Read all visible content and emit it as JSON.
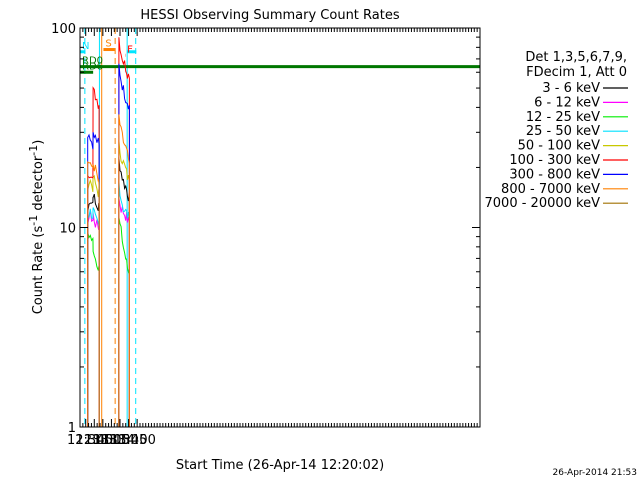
{
  "chart_data": {
    "type": "line",
    "title": "HESSI Observing Summary Count Rates",
    "xlabel": "Start Time (26-Apr-14 12:20:02)",
    "ylabel_main": "Count Rate (s",
    "ylabel_sup1": "-1",
    "ylabel_mid": " detector",
    "ylabel_sup2": "-1",
    "ylabel_end": ")",
    "yscale": "log",
    "ylim": [
      1,
      100
    ],
    "xlim": [
      740,
      1440
    ],
    "xtick_labels": [
      "12:30",
      "12:45",
      "13:00",
      "13:15",
      "13:30",
      "13:45",
      "14:00"
    ],
    "xtick_values": [
      750,
      765,
      780,
      795,
      810,
      825,
      840
    ],
    "ytick_labels": [
      "1",
      "10",
      "100"
    ],
    "ytick_values": [
      1,
      10,
      100
    ],
    "legend_header_1": "Det 1,3,5,6,7,9,",
    "legend_header_2": "FDecim 1, Att 0",
    "series": [
      {
        "name": "3 - 6 keV",
        "color": "#000000",
        "segments": [
          {
            "x": [
              753.5,
              758,
              762.5,
              763,
              767,
              772,
              773.5
            ],
            "y": [
              12,
              14,
              13.5,
              15,
              13,
              12.5,
              13
            ]
          },
          {
            "x": [
              808,
              812,
              816,
              820,
              823,
              826.5,
              826.5
            ],
            "y": [
              22,
              19,
              17,
              16,
              15,
              14,
              14
            ]
          }
        ]
      },
      {
        "name": "6 - 12 keV",
        "color": "#ff00ff",
        "segments": [
          {
            "x": [
              753.5,
              758,
              762.5,
              763,
              767,
              772,
              773.5
            ],
            "y": [
              11,
              11.5,
              11,
              11.5,
              10.5,
              10,
              10.2
            ]
          },
          {
            "x": [
              808,
              812,
              816,
              820,
              823,
              826.5
            ],
            "y": [
              14,
              12.5,
              12,
              11.5,
              11,
              10.5
            ]
          }
        ]
      },
      {
        "name": "12 - 25 keV",
        "color": "#00ee00",
        "segments": [
          {
            "x": [
              753.5,
              758,
              762.5,
              763,
              767,
              772,
              773.5
            ],
            "y": [
              9.5,
              9,
              8.5,
              8,
              7,
              6.5,
              6.3
            ]
          },
          {
            "x": [
              808,
              812,
              816,
              820,
              823,
              826.5
            ],
            "y": [
              11,
              9.5,
              8,
              7,
              6.3,
              5.8
            ]
          }
        ]
      },
      {
        "name": "25 - 50 keV",
        "color": "#00e0ff",
        "segments": [
          {
            "x": [
              753.5,
              758,
              762.5,
              763,
              767,
              772,
              773.5
            ],
            "y": [
              11.5,
              12,
              11.5,
              12,
              11,
              10.2,
              10
            ]
          },
          {
            "x": [
              808,
              812,
              816,
              820,
              823,
              826.5
            ],
            "y": [
              17,
              14,
              12.5,
              12,
              11.5,
              11
            ]
          }
        ]
      },
      {
        "name": "50 - 100 keV",
        "color": "#c8c800",
        "segments": [
          {
            "x": [
              753.5,
              758,
              762.5,
              763,
              767,
              772,
              773.5
            ],
            "y": [
              16.5,
              17,
              16,
              18,
              16.5,
              15,
              14.8
            ]
          },
          {
            "x": [
              808,
              812,
              816,
              820,
              823,
              826.5
            ],
            "y": [
              26,
              23,
              21,
              19.5,
              18,
              17
            ]
          }
        ]
      },
      {
        "name": "100 - 300 keV",
        "color": "#ff0000",
        "segments": [
          {
            "x": [
              753.5,
              762.5,
              763,
              767,
              772,
              773.5
            ],
            "y": [
              19,
              19,
              48,
              46,
              42,
              41
            ]
          },
          {
            "x": [
              808,
              812,
              816,
              820,
              823,
              826.5
            ],
            "y": [
              90,
              75,
              68,
              64,
              60,
              56
            ]
          }
        ]
      },
      {
        "name": "300 - 800 keV",
        "color": "#0000ff",
        "segments": [
          {
            "x": [
              753.5,
              758,
              762.5,
              763,
              767,
              772,
              773.5
            ],
            "y": [
              30,
              29,
              25,
              29,
              28,
              26.5,
              26
            ]
          },
          {
            "x": [
              808,
              812,
              816,
              820,
              823,
              826.5
            ],
            "y": [
              65,
              55,
              49,
              45,
              43,
              41
            ]
          }
        ]
      },
      {
        "name": "800 - 7000 keV",
        "color": "#ff8000",
        "segments": [
          {
            "x": [
              753.5,
              758,
              762.5,
              763,
              767,
              772,
              773.5
            ],
            "y": [
              21,
              21.5,
              19,
              21,
              19.5,
              17,
              16
            ]
          },
          {
            "x": [
              808,
              812,
              816,
              820,
              823,
              826.5
            ],
            "y": [
              36,
              30,
              27,
              25,
              23,
              21
            ]
          }
        ]
      },
      {
        "name": "7000 - 20000 keV",
        "color": "#a07000",
        "segments": []
      }
    ],
    "flags": [
      {
        "label": "N",
        "color": "#00e5ff",
        "level": 76,
        "segments": [
          [
            740,
            749.5
          ],
          [
            822.5,
            838.5
          ]
        ]
      },
      {
        "label": "S",
        "color": "#ff8000",
        "level": 78,
        "segments": [
          [
            781,
            801
          ]
        ]
      },
      {
        "label": "F",
        "color": "#ff0000",
        "level": 73,
        "segments": [
          [
            819,
            819.5
          ]
        ]
      },
      {
        "label": "RD0",
        "color": "#007700",
        "level": 64,
        "segments": [
          [
            740,
            1440
          ]
        ]
      },
      {
        "label": "RD6",
        "color": "#007700",
        "level": 60,
        "segments": [
          [
            740,
            763
          ]
        ]
      }
    ],
    "vlines": [
      {
        "x": 740,
        "color": "#00e5ff",
        "dash": false
      },
      {
        "x": 748.5,
        "color": "#00e5ff",
        "dash": true
      },
      {
        "x": 774,
        "color": "#00e5ff",
        "dash": false
      },
      {
        "x": 778,
        "color": "#ff8000",
        "dash": false
      },
      {
        "x": 801.5,
        "color": "#ff8000",
        "dash": true
      },
      {
        "x": 822.5,
        "color": "#00e5ff",
        "dash": false
      },
      {
        "x": 837.5,
        "color": "#00e5ff",
        "dash": true
      }
    ]
  },
  "footer": {
    "datestamp": "26-Apr-2014 21:53"
  }
}
